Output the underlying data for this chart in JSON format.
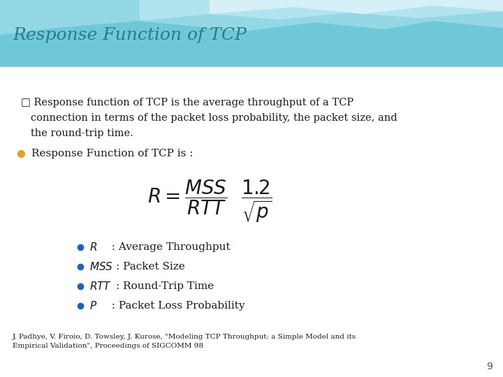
{
  "title": "Response Function of TCP",
  "title_color": "#2a7a8c",
  "title_fontsize": 18,
  "intro_line1": "□ Response function of TCP is the average throughput of a TCP",
  "intro_line2": "   connection in terms of the packet loss probability, the packet size, and",
  "intro_line3": "   the round-trip time.",
  "bullet_label": "Response Function of TCP is :",
  "bullet_items": [
    [
      "R",
      "  : Average Throughput"
    ],
    [
      "MSS",
      ": Packet Size"
    ],
    [
      "RTT",
      ": Round-Trip Time"
    ],
    [
      "P",
      "  : Packet Loss Probability"
    ]
  ],
  "reference": "J. Padhye, V. Firoio, D. Towsley, J. Kurose, \"Modeling TCP Throughput: a Simple Model and its\nEmpirical Validation\", Proceedings of SIGCOMM 98",
  "bullet_color": "#E8A020",
  "sub_bullet_color": "#2060C0",
  "page_number": "9",
  "header_bg": "#7fcfdf",
  "wave1_color": "#a8dce8",
  "wave2_color": "#c8eaf2",
  "content_bg": "#ffffff",
  "text_color": "#1a1a1a"
}
